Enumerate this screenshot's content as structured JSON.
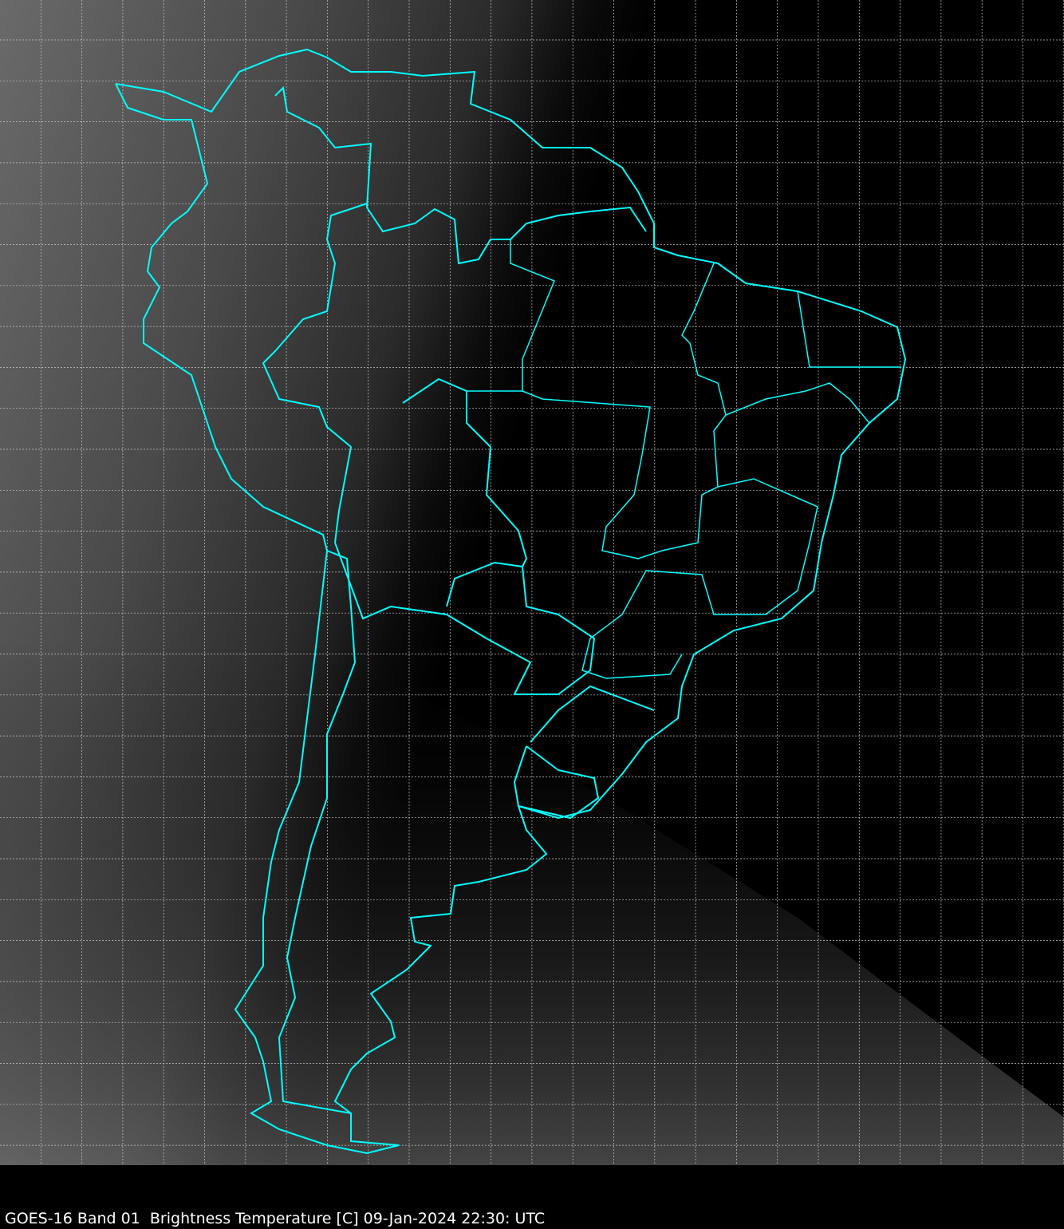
{
  "caption": "GOES-16 Band 01  Brightness Temperature [C] 09-Jan-2024 22:30: UTC",
  "map": {
    "satellite": "GOES-16",
    "band": "01",
    "region": "South America",
    "grid": true,
    "colors": {
      "boundaries": "#00ffff",
      "grid": "#c8c8c8",
      "background": "#000000"
    }
  }
}
